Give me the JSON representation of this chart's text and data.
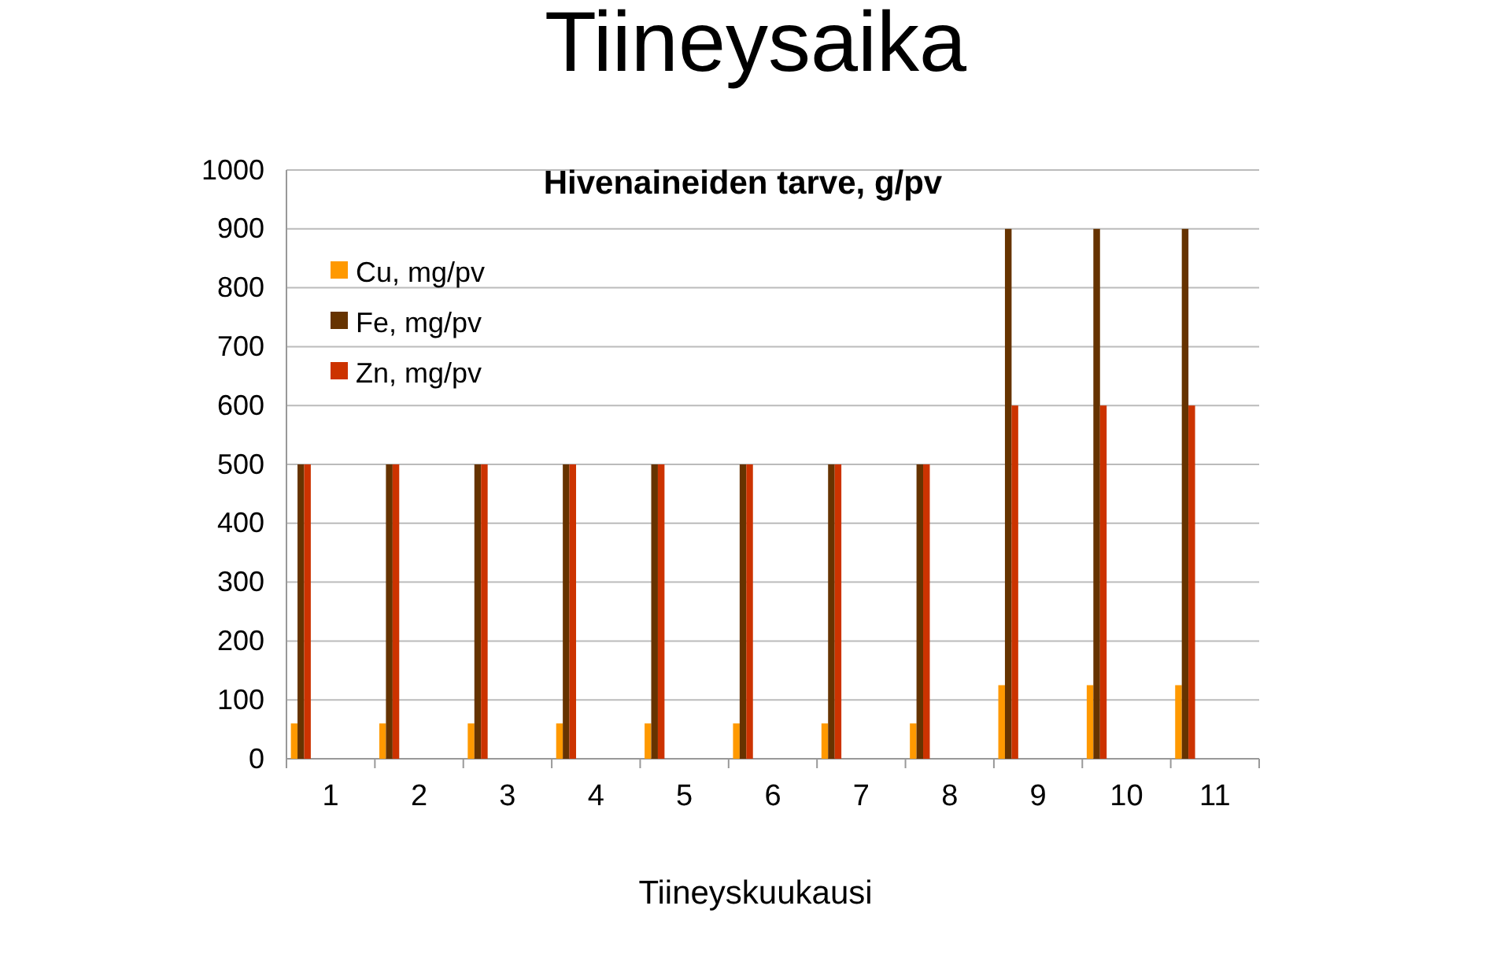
{
  "chart_data": {
    "type": "bar",
    "title": "Tiineysaika",
    "subtitle": "Hivenaineiden tarve, g/pv",
    "xlabel": "Tiineyskuukausi",
    "categories": [
      "1",
      "2",
      "3",
      "4",
      "5",
      "6",
      "7",
      "8",
      "9",
      "10",
      "11"
    ],
    "series": [
      {
        "name": "Cu, mg/pv",
        "color": "#ff9900",
        "values": [
          60,
          60,
          60,
          60,
          60,
          60,
          60,
          60,
          125,
          125,
          125
        ]
      },
      {
        "name": "Fe, mg/pv",
        "color": "#663300",
        "values": [
          500,
          500,
          500,
          500,
          500,
          500,
          500,
          500,
          900,
          900,
          900
        ]
      },
      {
        "name": "Zn, mg/pv",
        "color": "#cc3300",
        "values": [
          500,
          500,
          500,
          500,
          500,
          500,
          500,
          500,
          600,
          600,
          600
        ]
      }
    ],
    "ylim": [
      0,
      1000
    ],
    "yticks": [
      0,
      100,
      200,
      300,
      400,
      500,
      600,
      700,
      800,
      900,
      1000
    ],
    "grid": "y",
    "legend": "top left"
  }
}
